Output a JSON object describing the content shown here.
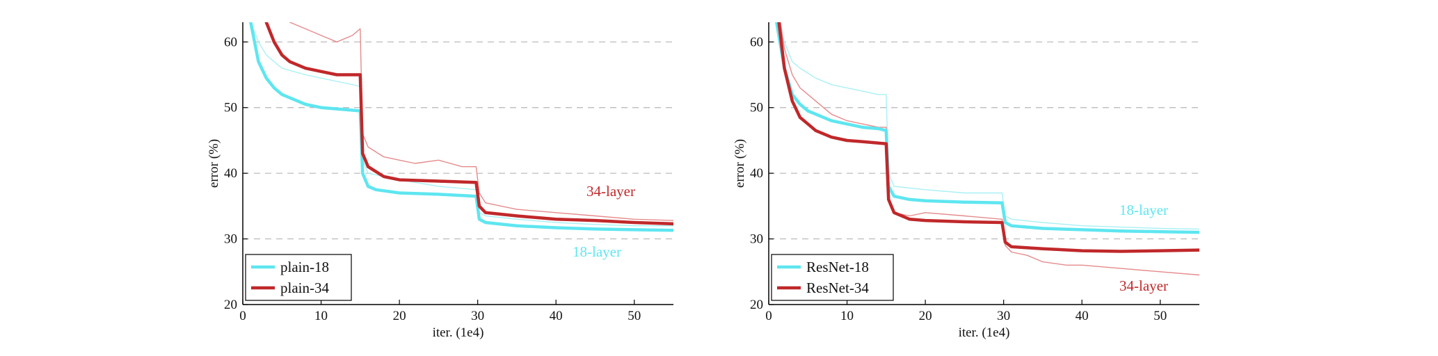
{
  "chart_data": [
    {
      "type": "line",
      "xlabel": "iter. (1e4)",
      "ylabel": "error (%)",
      "xlim": [
        0,
        55
      ],
      "ylim": [
        20,
        63
      ],
      "xticks": [
        0,
        10,
        20,
        30,
        40,
        50
      ],
      "yticks": [
        20,
        30,
        40,
        50,
        60
      ],
      "grid": "horizontal dashed",
      "legend": "bottom-left",
      "series": [
        {
          "name": "plain-18",
          "role": "val",
          "color": "#5ee6f0",
          "x": [
            1,
            2,
            3,
            4,
            5,
            6,
            8,
            10,
            12,
            14,
            15,
            15.3,
            16,
            17,
            20,
            25,
            29.8,
            30.2,
            31,
            35,
            40,
            45,
            50,
            55
          ],
          "y": [
            63,
            57,
            54.5,
            53,
            52,
            51.5,
            50.5,
            50,
            49.8,
            49.6,
            49.5,
            40,
            38,
            37.5,
            37,
            36.8,
            36.5,
            33,
            32.5,
            32,
            31.7,
            31.5,
            31.4,
            31.3
          ]
        },
        {
          "name": "plain-34",
          "role": "val",
          "color": "#c0282a",
          "x": [
            3,
            4,
            5,
            6,
            8,
            10,
            12,
            14,
            15,
            15.3,
            16,
            18,
            20,
            25,
            29.8,
            30.2,
            31,
            35,
            40,
            45,
            50,
            55
          ],
          "y": [
            63,
            60,
            58,
            57,
            56,
            55.5,
            55,
            55,
            55,
            43,
            41,
            39.5,
            39,
            38.8,
            38.6,
            35,
            34,
            33.5,
            33,
            32.8,
            32.5,
            32.3
          ]
        },
        {
          "name": "plain-18 train",
          "role": "train",
          "color": "#a8f0f5",
          "x": [
            1,
            2,
            3,
            5,
            8,
            10,
            12,
            14,
            15,
            15.3,
            16,
            20,
            25,
            29.8,
            30.2,
            31,
            35,
            40,
            45,
            50,
            55
          ],
          "y": [
            63,
            60,
            58,
            56,
            55,
            54.5,
            54,
            53.5,
            53.2,
            42,
            40,
            39,
            38,
            37.5,
            34,
            33.5,
            33,
            32.5,
            32.2,
            32,
            32
          ]
        },
        {
          "name": "plain-34 train",
          "role": "train",
          "color": "#e58a8b",
          "x": [
            6,
            8,
            10,
            12,
            14,
            15,
            15.3,
            16,
            18,
            20,
            22,
            25,
            28,
            29.8,
            30.2,
            31,
            33,
            35,
            40,
            45,
            50,
            55
          ],
          "y": [
            63,
            62,
            61,
            60,
            61,
            62,
            46,
            44,
            42.5,
            42,
            41.5,
            42,
            41,
            41,
            37,
            35.5,
            35,
            34.5,
            34,
            33.5,
            33,
            32.8
          ]
        }
      ],
      "annotations": [
        {
          "text": "34-layer",
          "color": "#c0282a"
        },
        {
          "text": "18-layer",
          "color": "#5ee6f0"
        }
      ]
    },
    {
      "type": "line",
      "xlabel": "iter. (1e4)",
      "ylabel": "error (%)",
      "xlim": [
        0,
        55
      ],
      "ylim": [
        20,
        63
      ],
      "xticks": [
        0,
        10,
        20,
        30,
        40,
        50
      ],
      "yticks": [
        20,
        30,
        40,
        50,
        60
      ],
      "grid": "horizontal dashed",
      "legend": "bottom-left",
      "series": [
        {
          "name": "ResNet-18",
          "role": "val",
          "color": "#5ee6f0",
          "x": [
            1,
            2,
            3,
            4,
            5,
            6,
            8,
            10,
            12,
            14,
            15,
            15.3,
            16,
            18,
            20,
            25,
            29.8,
            30.2,
            31,
            35,
            40,
            45,
            50,
            55
          ],
          "y": [
            63,
            56,
            52,
            50.5,
            49.5,
            49,
            48,
            47.5,
            47,
            46.8,
            46.5,
            38,
            36.5,
            36,
            35.8,
            35.6,
            35.5,
            32.5,
            32,
            31.6,
            31.4,
            31.2,
            31.1,
            31
          ]
        },
        {
          "name": "ResNet-34",
          "role": "val",
          "color": "#c0282a",
          "x": [
            1.3,
            2,
            3,
            4,
            5,
            6,
            8,
            10,
            12,
            14,
            15,
            15.3,
            16,
            18,
            20,
            25,
            29.8,
            30.2,
            31,
            35,
            40,
            45,
            50,
            55
          ],
          "y": [
            63,
            56,
            51,
            48.5,
            47.5,
            46.5,
            45.5,
            45,
            44.8,
            44.6,
            44.5,
            36,
            34,
            33,
            32.8,
            32.6,
            32.5,
            29.5,
            28.8,
            28.5,
            28.2,
            28.1,
            28.2,
            28.3
          ]
        },
        {
          "name": "ResNet-18 train",
          "role": "train",
          "color": "#a8f0f5",
          "x": [
            1,
            2,
            3,
            4,
            6,
            8,
            10,
            12,
            14,
            15,
            15.3,
            16,
            20,
            25,
            29.8,
            30.2,
            31,
            35,
            40,
            45,
            50,
            55
          ],
          "y": [
            63,
            60,
            57,
            56,
            54.5,
            53.5,
            53,
            52.5,
            52,
            52,
            40,
            38,
            37.5,
            37,
            37,
            33.5,
            33,
            32.5,
            32,
            31.8,
            31.6,
            31.5
          ]
        },
        {
          "name": "ResNet-34 train",
          "role": "train",
          "color": "#e58a8b",
          "x": [
            1.5,
            2,
            3,
            4,
            6,
            8,
            10,
            12,
            14,
            15,
            15.3,
            16,
            18,
            20,
            25,
            29.8,
            30.2,
            31,
            33,
            35,
            38,
            40,
            45,
            50,
            55
          ],
          "y": [
            63,
            59,
            55,
            53,
            51,
            49,
            48,
            47.5,
            47,
            47,
            36,
            34,
            33.5,
            34,
            33.5,
            33,
            29,
            28,
            27.5,
            26.5,
            26,
            26,
            25.5,
            25,
            24.5
          ]
        }
      ],
      "annotations": [
        {
          "text": "18-layer",
          "color": "#5ee6f0"
        },
        {
          "text": "34-layer",
          "color": "#c0282a"
        }
      ]
    }
  ]
}
